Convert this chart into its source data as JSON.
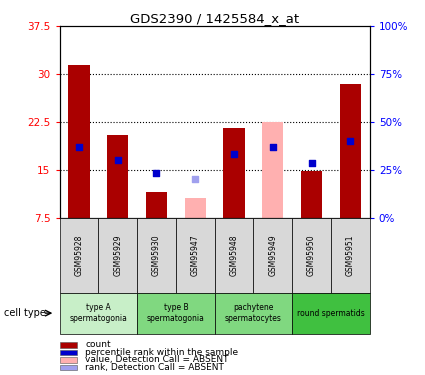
{
  "title": "GDS2390 / 1425584_x_at",
  "samples": [
    "GSM95928",
    "GSM95929",
    "GSM95930",
    "GSM95947",
    "GSM95948",
    "GSM95949",
    "GSM95950",
    "GSM95951"
  ],
  "counts": [
    31.5,
    20.5,
    11.5,
    null,
    21.5,
    null,
    14.8,
    28.5
  ],
  "counts_absent": [
    null,
    null,
    null,
    10.5,
    null,
    22.5,
    null,
    null
  ],
  "percentile_ranks": [
    18.5,
    16.5,
    14.5,
    null,
    17.5,
    18.5,
    16.0,
    19.5
  ],
  "percentile_ranks_absent": [
    null,
    null,
    null,
    13.5,
    null,
    null,
    null,
    null
  ],
  "cell_types": [
    {
      "label": "type A\nspermatogonia",
      "start": 0,
      "end": 2,
      "color": "#c8efc8"
    },
    {
      "label": "type B\nspermatogonia",
      "start": 2,
      "end": 4,
      "color": "#80d880"
    },
    {
      "label": "pachytene\nspermatocytes",
      "start": 4,
      "end": 6,
      "color": "#80d880"
    },
    {
      "label": "round spermatids",
      "start": 6,
      "end": 8,
      "color": "#40c040"
    }
  ],
  "ylim": [
    7.5,
    37.5
  ],
  "yticks": [
    7.5,
    15.0,
    22.5,
    30.0,
    37.5
  ],
  "ytick_labels_left": [
    "7.5",
    "15",
    "22.5",
    "30",
    "37.5"
  ],
  "ytick_labels_right": [
    "0%",
    "25%",
    "50%",
    "75%",
    "100%"
  ],
  "bar_color": "#aa0000",
  "absent_bar_color": "#ffb0b0",
  "rank_color": "#0000cc",
  "absent_rank_color": "#a0a0ee",
  "bar_width": 0.55,
  "rank_marker_size": 22,
  "background_color": "#ffffff",
  "legend_items": [
    {
      "label": "count",
      "color": "#aa0000"
    },
    {
      "label": "percentile rank within the sample",
      "color": "#0000cc"
    },
    {
      "label": "value, Detection Call = ABSENT",
      "color": "#ffb0b0"
    },
    {
      "label": "rank, Detection Call = ABSENT",
      "color": "#a0a0ee"
    }
  ]
}
